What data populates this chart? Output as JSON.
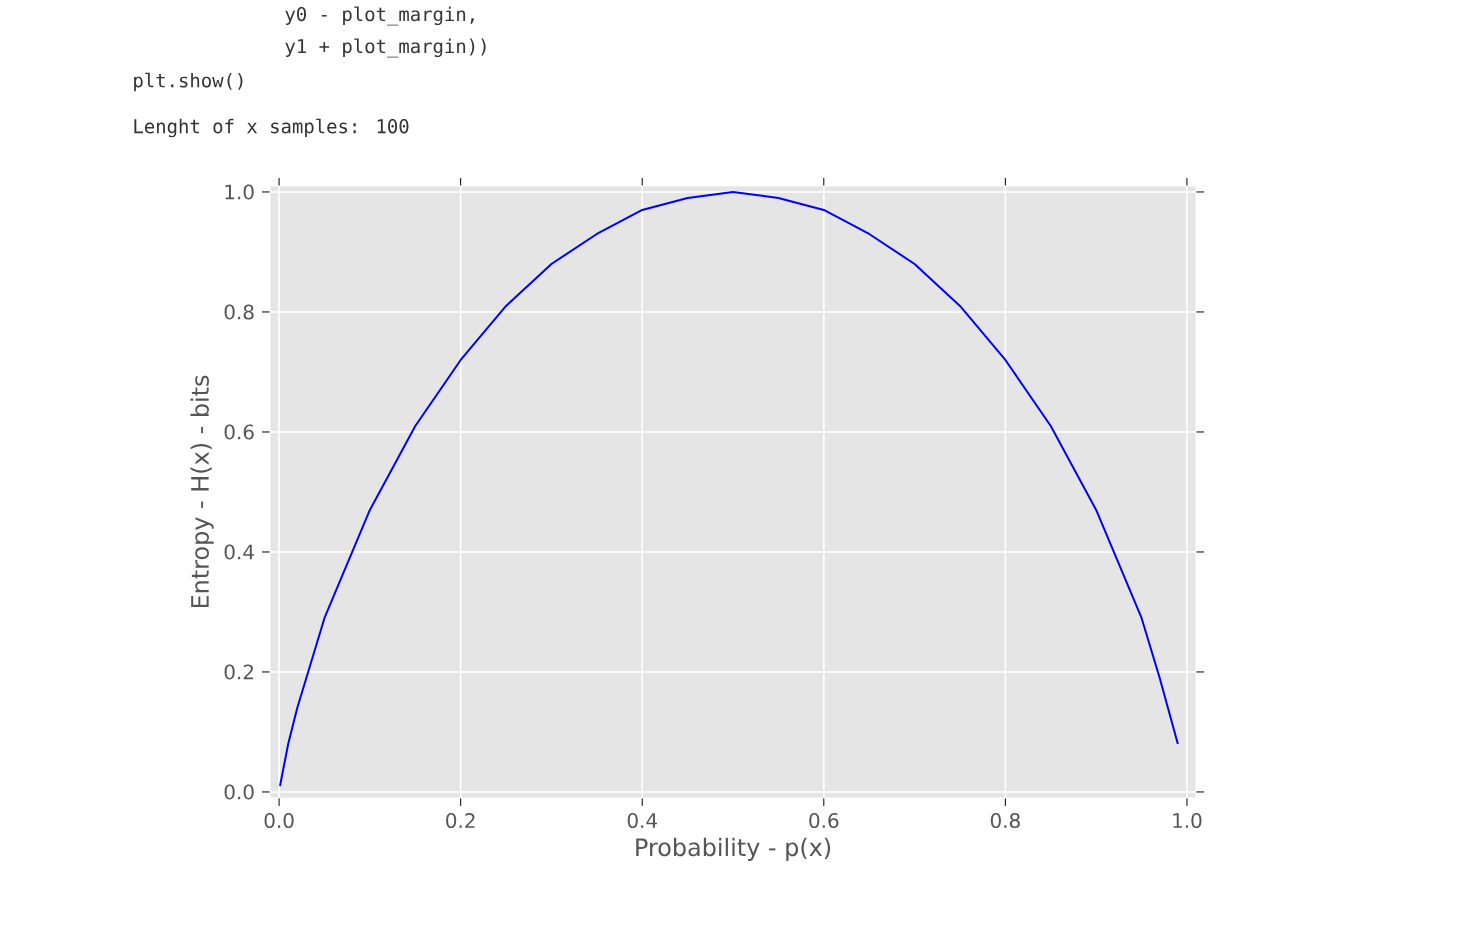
{
  "chart_data": {
    "type": "line",
    "xlabel": "Probability - p(x)",
    "ylabel": "Entropy - H(x) - bits",
    "annotations": [
      "y0 - plot_margin,",
      "y1 + plot_margin))",
      "plt.show()",
      "Lenght of x samples: 100"
    ],
    "x": [
      0.001,
      0.01,
      0.02,
      0.05,
      0.1,
      0.15,
      0.2,
      0.25,
      0.3,
      0.35,
      0.4,
      0.45,
      0.5,
      0.55,
      0.6,
      0.65,
      0.7,
      0.75,
      0.8,
      0.85,
      0.9,
      0.95,
      0.97,
      0.99
    ],
    "series": [
      {
        "color": "#0000ff",
        "values": [
          0.01,
          0.08,
          0.14,
          0.29,
          0.47,
          0.61,
          0.72,
          0.81,
          0.88,
          0.93,
          0.97,
          0.99,
          1.0,
          0.99,
          0.97,
          0.93,
          0.88,
          0.81,
          0.72,
          0.61,
          0.47,
          0.29,
          0.19,
          0.08
        ]
      }
    ],
    "xlim": [
      -0.01,
      1.01
    ],
    "ylim": [
      -0.01,
      1.01
    ],
    "xticks": [
      {
        "value": 0,
        "label": "0.0"
      },
      0.2,
      0.4,
      0.6,
      0.8,
      {
        "value": 1,
        "label": "1.0"
      }
    ],
    "yticks": [
      {
        "value": 0,
        "label": "0.0"
      },
      0.2,
      0.4,
      0.6,
      0.8,
      {
        "value": 1,
        "label": "1.0"
      }
    ],
    "grid": true,
    "marker": "none",
    "line_style": "solid"
  }
}
